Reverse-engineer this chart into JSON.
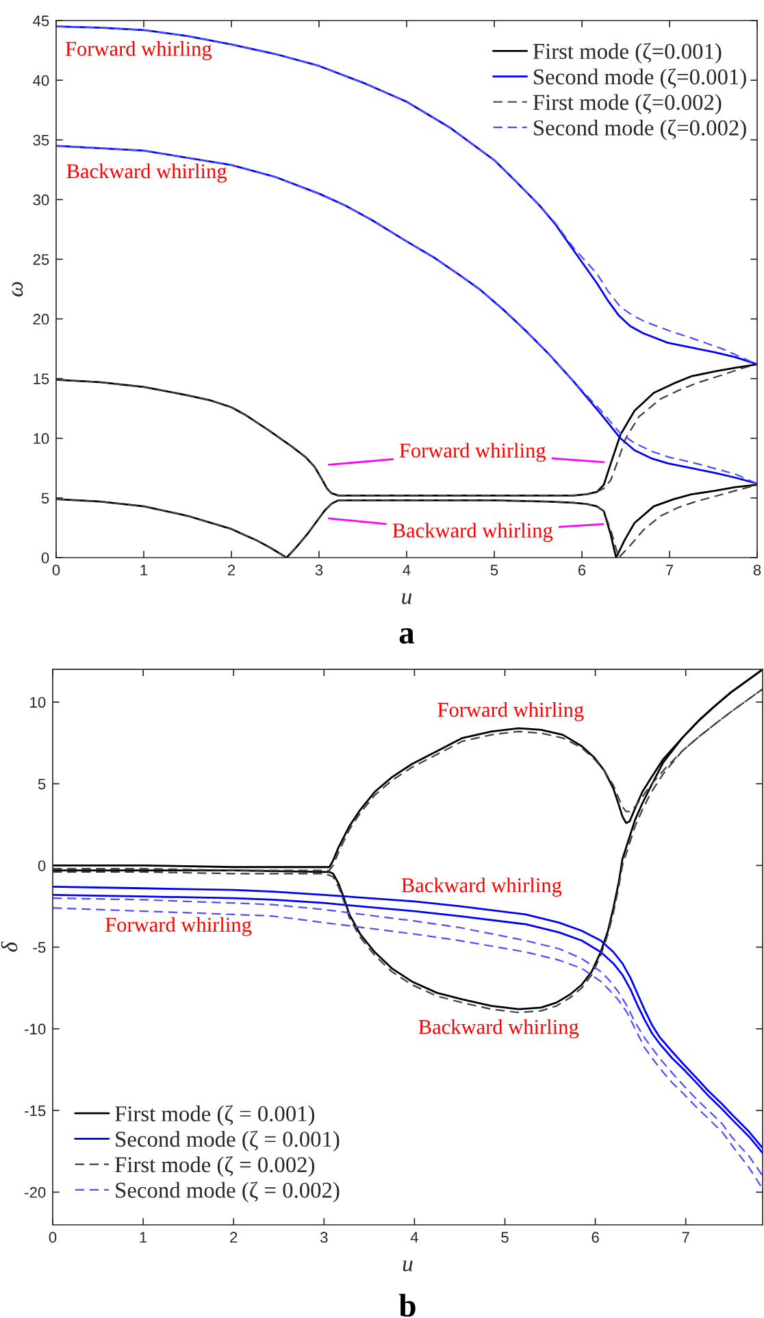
{
  "chart_data": [
    {
      "type": "line",
      "title": "a",
      "xlabel": "u",
      "ylabel": "ω",
      "xlim": [
        0,
        8
      ],
      "ylim": [
        0,
        45
      ],
      "xticks": [
        0,
        1,
        2,
        3,
        4,
        5,
        6,
        7,
        8
      ],
      "yticks": [
        0,
        5,
        10,
        15,
        20,
        25,
        30,
        35,
        40,
        45
      ],
      "legend": "top right",
      "series": [
        {
          "name": "First mode (ζ=0.001)",
          "color": "#000000",
          "line_style": "solid",
          "x": [
            0,
            0.5,
            1,
            1.5,
            1.75,
            2,
            2.15,
            2.42,
            2.69,
            2.85,
            2.95,
            3.03,
            3.09,
            3.14,
            3.22,
            3.4,
            4,
            5,
            5.6,
            5.9,
            6.05,
            6.17,
            6.25,
            6.33,
            6.44,
            6.6,
            6.82,
            7.05,
            7.25,
            7.52,
            7.75,
            8
          ],
          "values": [
            14.9,
            14.7,
            14.3,
            13.6,
            13.2,
            12.6,
            12.0,
            10.7,
            9.3,
            8.4,
            7.6,
            6.6,
            5.8,
            5.4,
            5.2,
            5.2,
            5.2,
            5.2,
            5.2,
            5.2,
            5.3,
            5.5,
            6.1,
            7.9,
            10.3,
            12.3,
            13.8,
            14.6,
            15.2,
            15.6,
            15.9,
            16.2
          ]
        },
        {
          "color": "#000000",
          "line_style": "solid",
          "x": [
            0,
            0.5,
            1,
            1.5,
            2,
            2.15,
            2.3,
            2.45,
            2.63,
            2.72,
            2.79,
            2.87,
            2.95,
            3.06,
            3.14,
            3.22,
            3.4,
            4,
            5,
            5.6,
            5.9,
            6.05,
            6.17,
            6.25,
            6.33,
            6.39,
            6.49,
            6.6,
            6.82,
            7.05,
            7.25,
            7.52,
            7.75,
            8
          ],
          "values": [
            4.9,
            4.7,
            4.3,
            3.5,
            2.4,
            1.9,
            1.4,
            0.8,
            0.0,
            0.7,
            1.3,
            2.0,
            2.8,
            3.9,
            4.5,
            4.8,
            4.8,
            4.8,
            4.8,
            4.7,
            4.6,
            4.5,
            4.3,
            3.9,
            1.9,
            0.0,
            1.5,
            2.9,
            4.3,
            4.9,
            5.3,
            5.6,
            5.9,
            6.1
          ]
        },
        {
          "name": "Second mode (ζ=0.001)",
          "color": "#0000ff",
          "line_style": "solid",
          "x": [
            0,
            0.5,
            1,
            1.5,
            2,
            2.5,
            3,
            3.5,
            4,
            4.5,
            5,
            5.25,
            5.53,
            5.7,
            5.9,
            6.17,
            6.3,
            6.42,
            6.55,
            6.7,
            6.98,
            7.25,
            7.52,
            7.75,
            8
          ],
          "values": [
            44.5,
            44.4,
            44.2,
            43.7,
            43.0,
            42.2,
            41.2,
            39.8,
            38.2,
            36.0,
            33.3,
            31.5,
            29.4,
            27.9,
            25.8,
            23.0,
            21.5,
            20.3,
            19.4,
            18.8,
            18.0,
            17.6,
            17.2,
            16.8,
            16.2
          ]
        },
        {
          "color": "#0000ff",
          "line_style": "solid",
          "x": [
            0,
            1,
            2,
            2.5,
            3,
            3.3,
            3.6,
            4,
            4.3,
            4.6,
            4.83,
            5.1,
            5.36,
            5.63,
            5.9,
            6.22,
            6.44,
            6.6,
            6.8,
            6.98,
            7.25,
            7.52,
            7.75,
            8
          ],
          "values": [
            34.5,
            34.1,
            32.9,
            31.9,
            30.5,
            29.5,
            28.3,
            26.5,
            25.2,
            23.7,
            22.5,
            20.8,
            19.0,
            17.0,
            14.8,
            12.0,
            10.0,
            9.0,
            8.3,
            7.9,
            7.5,
            7.1,
            6.7,
            6.2
          ]
        },
        {
          "name": "First mode (ζ=0.002)",
          "color": "#3f3f3f",
          "line_style": "dashed",
          "x": [
            0,
            0.5,
            1,
            1.5,
            1.75,
            2,
            2.15,
            2.42,
            2.69,
            2.85,
            2.95,
            3.03,
            3.09,
            3.14,
            3.22,
            3.4,
            4,
            5,
            5.6,
            5.9,
            6.05,
            6.17,
            6.25,
            6.33,
            6.4,
            6.5,
            6.65,
            6.9,
            7.1,
            7.3,
            7.6,
            7.8,
            8
          ],
          "values": [
            14.9,
            14.7,
            14.3,
            13.6,
            13.2,
            12.6,
            12.0,
            10.7,
            9.3,
            8.4,
            7.6,
            6.6,
            5.8,
            5.4,
            5.2,
            5.2,
            5.2,
            5.2,
            5.2,
            5.2,
            5.3,
            5.5,
            5.8,
            6.5,
            7.9,
            10.0,
            11.8,
            13.3,
            14.0,
            14.6,
            15.3,
            15.8,
            16.2
          ]
        },
        {
          "color": "#3f3f3f",
          "line_style": "dashed",
          "x": [
            0,
            0.5,
            1,
            1.5,
            2,
            2.15,
            2.3,
            2.45,
            2.63,
            2.72,
            2.79,
            2.87,
            2.95,
            3.06,
            3.14,
            3.22,
            3.4,
            4,
            5,
            5.6,
            5.9,
            6.05,
            6.17,
            6.25,
            6.33,
            6.42,
            6.55,
            6.7,
            6.9,
            7.1,
            7.3,
            7.5,
            7.75,
            8
          ],
          "values": [
            4.9,
            4.7,
            4.3,
            3.5,
            2.4,
            1.9,
            1.4,
            0.8,
            0.0,
            0.7,
            1.3,
            2.0,
            2.8,
            3.9,
            4.5,
            4.8,
            4.8,
            4.8,
            4.8,
            4.7,
            4.6,
            4.5,
            4.3,
            3.9,
            2.3,
            0.0,
            1.0,
            2.3,
            3.5,
            4.2,
            4.7,
            5.1,
            5.6,
            6.1
          ]
        },
        {
          "name": "Second mode (ζ=0.002)",
          "color": "#4d4dff",
          "line_style": "dashed",
          "x": [
            0,
            0.5,
            1,
            1.5,
            2,
            2.5,
            3,
            3.5,
            4,
            4.5,
            5,
            5.25,
            5.53,
            5.7,
            5.9,
            6.17,
            6.3,
            6.44,
            6.58,
            6.71,
            7.0,
            7.25,
            7.6,
            8
          ],
          "values": [
            44.5,
            44.4,
            44.2,
            43.7,
            43.0,
            42.2,
            41.2,
            39.8,
            38.2,
            36.0,
            33.3,
            31.5,
            29.4,
            28.0,
            26.0,
            23.8,
            22.3,
            21.0,
            20.3,
            19.8,
            19.0,
            18.4,
            17.5,
            16.2
          ]
        },
        {
          "color": "#4d4dff",
          "line_style": "dashed",
          "x": [
            0,
            1,
            2,
            2.5,
            3,
            3.3,
            3.6,
            4,
            4.3,
            4.6,
            4.83,
            5.1,
            5.36,
            5.63,
            5.9,
            6.22,
            6.44,
            6.6,
            6.8,
            7.0,
            7.25,
            7.5,
            7.75,
            8
          ],
          "values": [
            34.5,
            34.1,
            32.9,
            31.9,
            30.5,
            29.5,
            28.3,
            26.5,
            25.2,
            23.7,
            22.5,
            20.8,
            19.0,
            17.0,
            14.8,
            12.3,
            10.4,
            9.6,
            8.9,
            8.4,
            8.0,
            7.5,
            7.0,
            6.2
          ]
        }
      ],
      "annotations": [
        "Forward whirling",
        "Backward whirling",
        {
          "text": "Forward whirling",
          "x": 6.25,
          "y": 8.0
        },
        {
          "text": "Backward whirling",
          "x": 6.24,
          "y": 2.8
        }
      ]
    },
    {
      "type": "line",
      "title": "b",
      "xlabel": "u",
      "ylabel": "δ",
      "xlim": [
        0,
        7.85
      ],
      "ylim": [
        -22,
        12
      ],
      "xticks": [
        0,
        1,
        2,
        3,
        4,
        5,
        6,
        7
      ],
      "yticks": [
        -20,
        -15,
        -10,
        -5,
        0,
        5,
        10
      ],
      "legend": "bottom left",
      "series": [
        {
          "name": "First mode (ζ = 0.001)",
          "color": "#000000",
          "line_style": "solid",
          "x": [
            0,
            1,
            2,
            3,
            3.06,
            3.1,
            3.16,
            3.28,
            3.4,
            3.56,
            3.75,
            3.97,
            4.25,
            4.53,
            4.85,
            5.15,
            5.4,
            5.64,
            5.85,
            5.99,
            6.1,
            6.2,
            6.26,
            6.3,
            6.34,
            6.38,
            6.44,
            6.52,
            6.61,
            6.75,
            6.96,
            7.15,
            7.31,
            7.5,
            7.7,
            7.85
          ],
          "values": [
            0.0,
            0.0,
            -0.1,
            -0.1,
            -0.1,
            0.3,
            1.1,
            2.4,
            3.4,
            4.5,
            5.4,
            6.2,
            7.0,
            7.8,
            8.2,
            8.4,
            8.3,
            8.0,
            7.3,
            6.6,
            5.8,
            4.7,
            3.7,
            3.0,
            2.6,
            2.7,
            3.5,
            4.5,
            5.3,
            6.5,
            7.8,
            8.9,
            9.7,
            10.6,
            11.4,
            12.0
          ]
        },
        {
          "color": "#000000",
          "line_style": "solid",
          "x": [
            0,
            1,
            2,
            3,
            3.06,
            3.1,
            3.16,
            3.22,
            3.28,
            3.4,
            3.56,
            3.75,
            3.97,
            4.25,
            4.53,
            4.85,
            5.15,
            5.4,
            5.57,
            5.72,
            5.85,
            5.96,
            6.06,
            6.14,
            6.2,
            6.26,
            6.3,
            6.37,
            6.44,
            6.52,
            6.61,
            6.75,
            6.96,
            7.15,
            7.31,
            7.5,
            7.7,
            7.85
          ],
          "values": [
            -0.3,
            -0.3,
            -0.3,
            -0.4,
            -0.4,
            -0.5,
            -1.1,
            -2.0,
            -3.0,
            -4.2,
            -5.3,
            -6.3,
            -7.1,
            -7.8,
            -8.2,
            -8.6,
            -8.8,
            -8.7,
            -8.4,
            -7.9,
            -7.3,
            -6.5,
            -5.3,
            -4.0,
            -2.6,
            -1.0,
            0.4,
            1.6,
            2.8,
            3.8,
            4.8,
            6.3,
            7.8,
            8.9,
            9.7,
            10.6,
            11.4,
            12.0
          ]
        },
        {
          "name": "Second mode (ζ = 0.001)",
          "color": "#0000ff",
          "line_style": "solid",
          "x": [
            0,
            1,
            2,
            2.44,
            3,
            4,
            4.5,
            5.23,
            5.6,
            5.85,
            6.06,
            6.2,
            6.3,
            6.39,
            6.47,
            6.55,
            6.63,
            6.71,
            6.85,
            6.98,
            7.1,
            7.25,
            7.4,
            7.52,
            7.7,
            7.85
          ],
          "values": [
            -1.3,
            -1.4,
            -1.5,
            -1.6,
            -1.8,
            -2.2,
            -2.5,
            -3.0,
            -3.5,
            -4.0,
            -4.6,
            -5.3,
            -6.0,
            -6.9,
            -7.9,
            -8.9,
            -9.8,
            -10.5,
            -11.4,
            -12.2,
            -12.9,
            -13.8,
            -14.6,
            -15.3,
            -16.3,
            -17.3
          ]
        },
        {
          "color": "#0000ff",
          "line_style": "solid",
          "x": [
            0,
            1,
            2,
            2.44,
            3,
            4,
            4.5,
            5.23,
            5.6,
            5.85,
            6.06,
            6.2,
            6.3,
            6.39,
            6.47,
            6.55,
            6.63,
            6.71,
            6.85,
            6.98,
            7.1,
            7.25,
            7.4,
            7.52,
            7.7,
            7.85
          ],
          "values": [
            -1.8,
            -1.9,
            -2.0,
            -2.1,
            -2.3,
            -2.8,
            -3.1,
            -3.6,
            -4.1,
            -4.6,
            -5.3,
            -6.0,
            -6.7,
            -7.6,
            -8.6,
            -9.5,
            -10.3,
            -10.9,
            -11.8,
            -12.5,
            -13.2,
            -14.1,
            -14.9,
            -15.6,
            -16.6,
            -17.6
          ]
        },
        {
          "name": "First mode (ζ = 0.002)",
          "color": "#3f3f3f",
          "line_style": "dashed",
          "x": [
            0,
            1,
            2,
            3,
            3.06,
            3.1,
            3.16,
            3.28,
            3.4,
            3.56,
            3.75,
            3.97,
            4.25,
            4.53,
            4.85,
            5.15,
            5.4,
            5.64,
            5.85,
            5.99,
            6.1,
            6.2,
            6.26,
            6.3,
            6.34,
            6.38,
            6.44,
            6.52,
            6.61,
            6.75,
            6.96,
            7.15,
            7.31,
            7.5,
            7.7,
            7.85
          ],
          "values": [
            -0.2,
            -0.2,
            -0.3,
            -0.3,
            -0.3,
            0.0,
            0.8,
            2.2,
            3.2,
            4.3,
            5.2,
            6.0,
            6.8,
            7.6,
            8.0,
            8.2,
            8.1,
            7.8,
            7.2,
            6.5,
            5.8,
            4.9,
            4.1,
            3.6,
            3.3,
            3.3,
            3.6,
            4.2,
            4.9,
            5.8,
            7.0,
            7.9,
            8.6,
            9.4,
            10.2,
            10.8
          ]
        },
        {
          "color": "#3f3f3f",
          "line_style": "dashed",
          "x": [
            0,
            1,
            2,
            3,
            3.06,
            3.1,
            3.16,
            3.22,
            3.28,
            3.4,
            3.56,
            3.75,
            3.97,
            4.25,
            4.53,
            4.85,
            5.15,
            5.4,
            5.57,
            5.72,
            5.85,
            5.96,
            6.06,
            6.14,
            6.2,
            6.26,
            6.3,
            6.37,
            6.44,
            6.52,
            6.61,
            6.75,
            6.96,
            7.15,
            7.31,
            7.5,
            7.7,
            7.85
          ],
          "values": [
            -0.4,
            -0.4,
            -0.5,
            -0.5,
            -0.6,
            -0.7,
            -1.3,
            -2.2,
            -3.2,
            -4.4,
            -5.5,
            -6.5,
            -7.3,
            -8.0,
            -8.4,
            -8.8,
            -9.0,
            -8.9,
            -8.6,
            -8.1,
            -7.5,
            -6.7,
            -5.5,
            -4.2,
            -2.9,
            -1.3,
            0.0,
            1.2,
            2.4,
            3.4,
            4.4,
            5.6,
            7.0,
            7.9,
            8.6,
            9.4,
            10.2,
            10.8
          ]
        },
        {
          "name": "Second mode (ζ = 0.002)",
          "color": "#4d4dff",
          "line_style": "dashed",
          "x": [
            0,
            1,
            2,
            2.44,
            3,
            4,
            4.5,
            5.23,
            5.6,
            5.85,
            6.06,
            6.15,
            6.25,
            6.35,
            6.44,
            6.55,
            6.71,
            6.85,
            6.98,
            7.1,
            7.25,
            7.4,
            7.52,
            7.7,
            7.85
          ],
          "values": [
            -2.0,
            -2.1,
            -2.3,
            -2.4,
            -2.7,
            -3.4,
            -3.8,
            -4.6,
            -5.1,
            -5.7,
            -6.5,
            -7.0,
            -7.7,
            -8.6,
            -9.6,
            -10.6,
            -11.8,
            -12.7,
            -13.5,
            -14.2,
            -15.0,
            -15.8,
            -16.7,
            -17.8,
            -19.0
          ]
        },
        {
          "color": "#4d4dff",
          "line_style": "dashed",
          "x": [
            0,
            1,
            2,
            2.44,
            3,
            4,
            4.5,
            5.23,
            5.6,
            5.85,
            6.06,
            6.15,
            6.25,
            6.35,
            6.44,
            6.55,
            6.71,
            6.85,
            6.98,
            7.1,
            7.25,
            7.4,
            7.52,
            7.7,
            7.85
          ],
          "values": [
            -2.6,
            -2.8,
            -3.0,
            -3.1,
            -3.5,
            -4.2,
            -4.6,
            -5.3,
            -5.8,
            -6.3,
            -7.1,
            -7.6,
            -8.2,
            -9.0,
            -10.0,
            -11.2,
            -12.4,
            -13.3,
            -14.0,
            -14.7,
            -15.5,
            -16.3,
            -17.2,
            -18.5,
            -19.8
          ]
        }
      ],
      "annotations": [
        "Forward whirling",
        "Backward whirling",
        "Forward whirling",
        "Backward whirling"
      ]
    }
  ]
}
